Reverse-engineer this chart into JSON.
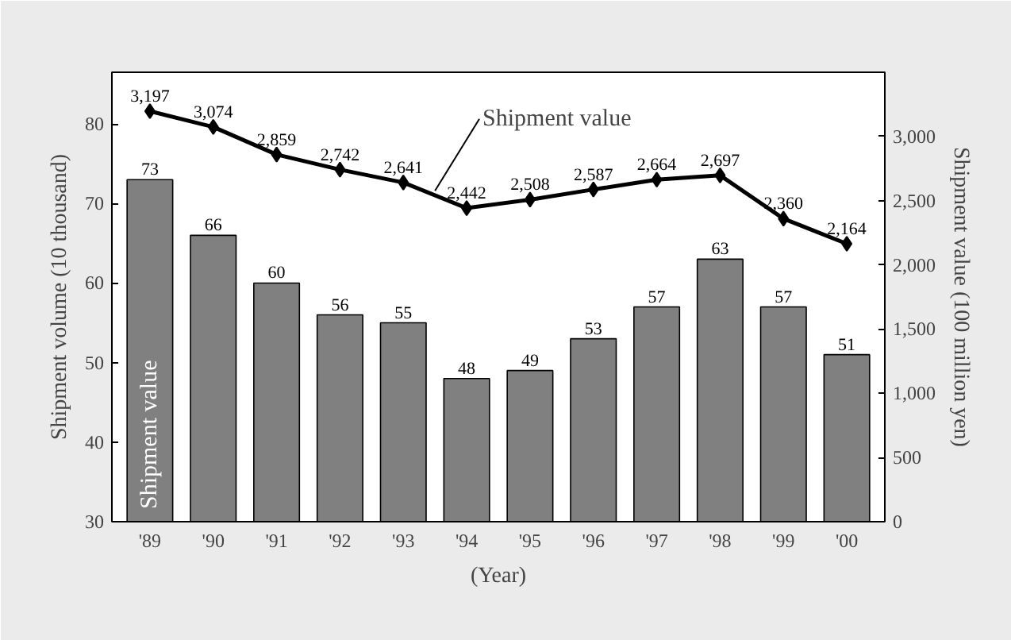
{
  "chart_data": {
    "type": "bar",
    "xlabel": "(Year)",
    "ylabel": "Shipment volume (10 thousand)",
    "y2label": "Shipment value (100 million yen)",
    "categories": [
      "'89",
      "'90",
      "'91",
      "'92",
      "'93",
      "'94",
      "'95",
      "'96",
      "'97",
      "'98",
      "'99",
      "'00"
    ],
    "series": [
      {
        "name": "Shipment value",
        "color": "#808080",
        "values": [
          73,
          66,
          60,
          56,
          55,
          48,
          49,
          53,
          57,
          63,
          57,
          51
        ]
      },
      {
        "type": "line",
        "name": "Shipment value",
        "color": "#000000",
        "axis": "y2",
        "marker": "diamond",
        "values": [
          3197,
          3074,
          2859,
          2742,
          2641,
          2442,
          2508,
          2587,
          2664,
          2697,
          2360,
          2164
        ],
        "value_labels": [
          "3,197",
          "3,074",
          "2,859",
          "2,742",
          "2,641",
          "2,442",
          "2,508",
          "2,587",
          "2,664",
          "2,697",
          "2,360",
          "2,164"
        ]
      }
    ],
    "ylim": [
      30,
      86.5
    ],
    "yticks": [
      30,
      40,
      50,
      60,
      70,
      80
    ],
    "y2lim": [
      0,
      3500
    ],
    "y2ticks": [
      0,
      {
        "value": 500,
        "label": "500"
      },
      {
        "value": 1000,
        "label": "1,000"
      },
      {
        "value": 1500,
        "label": "1,500"
      },
      {
        "value": 2000,
        "label": "2,000"
      },
      {
        "value": 2500,
        "label": "2,500"
      },
      {
        "value": 3000,
        "label": "3,000"
      }
    ],
    "data_labels": true,
    "grid": false
  }
}
